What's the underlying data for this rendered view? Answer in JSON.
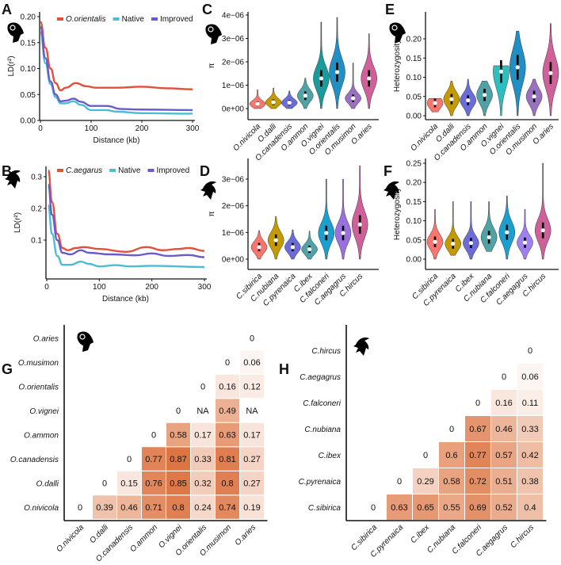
{
  "panel_labels": [
    "A",
    "B",
    "C",
    "D",
    "E",
    "F",
    "G",
    "H"
  ],
  "colors": {
    "wild": "#e0503a",
    "native": "#4bbcd4",
    "improved": "#6a5acd",
    "heat_low": "#ffffff",
    "heat_high": "#dc703c"
  },
  "icons": {
    "sheep": "ram-head-icon",
    "goat": "goat-head-icon"
  },
  "chart_data": [
    {
      "panel": "A",
      "type": "line",
      "xlabel": "Distance (kb)",
      "ylabel": "LD(r²)",
      "xlim": [
        0,
        300
      ],
      "ylim": [
        0,
        0.2
      ],
      "xticks": [
        0,
        100,
        200,
        300
      ],
      "xtick_labels": [
        "0",
        "100",
        "200",
        "300"
      ],
      "yticks": [
        0,
        0.05,
        0.1,
        0.15,
        0.2
      ],
      "ytick_labels": [
        "0.00",
        "0.05",
        "0.10",
        "0.15",
        "0.20"
      ],
      "legend": "top-right",
      "series": [
        {
          "name": "O.orientalis",
          "italic": true,
          "color": "#e0503a",
          "x": [
            0,
            10,
            20,
            30,
            40,
            50,
            70,
            90,
            110,
            150,
            200,
            250,
            300
          ],
          "y": [
            0.19,
            0.14,
            0.1,
            0.072,
            0.058,
            0.063,
            0.072,
            0.066,
            0.063,
            0.063,
            0.065,
            0.062,
            0.06
          ]
        },
        {
          "name": "Native",
          "color": "#4bbcd4",
          "x": [
            0,
            10,
            20,
            30,
            40,
            50,
            65,
            80,
            100,
            130,
            150,
            200,
            300
          ],
          "y": [
            0.17,
            0.11,
            0.07,
            0.045,
            0.033,
            0.033,
            0.037,
            0.03,
            0.02,
            0.02,
            0.017,
            0.014,
            0.013
          ]
        },
        {
          "name": "Improved",
          "color": "#6a5acd",
          "x": [
            0,
            10,
            20,
            30,
            40,
            50,
            65,
            80,
            100,
            130,
            160,
            200,
            300
          ],
          "y": [
            0.18,
            0.12,
            0.075,
            0.05,
            0.037,
            0.038,
            0.042,
            0.036,
            0.028,
            0.028,
            0.022,
            0.021,
            0.02
          ]
        }
      ]
    },
    {
      "panel": "B",
      "type": "line",
      "xlabel": "Distance (kb)",
      "ylabel": "LD(r²)",
      "xlim": [
        0,
        300
      ],
      "ylim": [
        0,
        0.33
      ],
      "xticks": [
        0,
        100,
        200,
        300
      ],
      "xtick_labels": [
        "0",
        "100",
        "200",
        "300"
      ],
      "yticks": [
        0.1,
        0.2,
        0.3
      ],
      "ytick_labels": [
        "0.1",
        "0.2",
        "0.3"
      ],
      "legend": "top-right",
      "series": [
        {
          "name": "C.aegarus",
          "italic": true,
          "color": "#e0503a",
          "x": [
            3,
            10,
            20,
            30,
            40,
            55,
            70,
            100,
            150,
            190,
            220,
            250,
            270,
            300
          ],
          "y": [
            0.32,
            0.22,
            0.12,
            0.075,
            0.068,
            0.075,
            0.078,
            0.072,
            0.063,
            0.078,
            0.068,
            0.072,
            0.075,
            0.066
          ]
        },
        {
          "name": "Native",
          "color": "#4bbcd4",
          "x": [
            3,
            10,
            20,
            30,
            45,
            65,
            80,
            100,
            130,
            160,
            200,
            300
          ],
          "y": [
            0.21,
            0.12,
            0.05,
            0.022,
            0.022,
            0.032,
            0.025,
            0.017,
            0.021,
            0.017,
            0.019,
            0.015
          ]
        },
        {
          "name": "Improved",
          "color": "#6a5acd",
          "x": [
            3,
            10,
            20,
            30,
            45,
            65,
            80,
            120,
            170,
            200,
            230,
            270,
            300
          ],
          "y": [
            0.275,
            0.18,
            0.1,
            0.06,
            0.055,
            0.068,
            0.06,
            0.055,
            0.052,
            0.058,
            0.05,
            0.053,
            0.046
          ]
        }
      ]
    },
    {
      "panel": "C",
      "type": "violin",
      "ylabel": "π",
      "ylim": [
        0,
        4e-06
      ],
      "yticks": [
        0,
        1e-06,
        2e-06,
        3e-06,
        4e-06
      ],
      "ytick_labels": [
        "0e+00",
        "1e−06",
        "2e−06",
        "3e−06",
        "4e−06"
      ],
      "categories": [
        "O.nivicola",
        "O.dalli",
        "O.canadensis",
        "O.ammon",
        "O.vignei",
        "O.orientalis",
        "O.musimon",
        "O.aries"
      ],
      "colors": [
        "#f8766d",
        "#c49a00",
        "#6c6cd9",
        "#4fa3a5",
        "#1a9b9b",
        "#1f8fc4",
        "#9a70c0",
        "#d0609a"
      ],
      "median": [
        2e-07,
        2.7e-07,
        2.5e-07,
        5.5e-07,
        1.29e-06,
        1.56e-06,
        4.4e-07,
        1.29e-06
      ],
      "min": [
        0,
        0,
        0,
        0,
        0,
        0,
        0,
        0
      ],
      "max": [
        8.1e-07,
        8.8e-07,
        7.5e-07,
        1.3e-06,
        3.7e-06,
        3.9e-06,
        1.95e-06,
        3.2e-06
      ]
    },
    {
      "panel": "D",
      "type": "violin",
      "ylabel": "π",
      "ylim": [
        0,
        3.6e-06
      ],
      "yticks": [
        0,
        1e-06,
        2e-06,
        3e-06
      ],
      "ytick_labels": [
        "0e+00",
        "1e−06",
        "2e−06",
        "3e−06"
      ],
      "categories": [
        "C.sibirica",
        "C.nubiana",
        "C.pyrenaica",
        "C.ibex",
        "C.falconeri",
        "C.aegagrus",
        "C.hircus"
      ],
      "colors": [
        "#f8766d",
        "#c49a00",
        "#6c6cd9",
        "#4fa3a5",
        "#1aa0d0",
        "#9a70e0",
        "#d0609a"
      ],
      "median": [
        4.5e-07,
        7.1e-07,
        4.5e-07,
        3.7e-07,
        9.8e-07,
        9.8e-07,
        1.3e-06
      ],
      "min": [
        0,
        0,
        0,
        0,
        0,
        0,
        0
      ],
      "max": [
        1.07e-06,
        1.6e-06,
        1.1e-06,
        1.05e-06,
        3e-06,
        3e-06,
        3.5e-06
      ]
    },
    {
      "panel": "E",
      "type": "violin",
      "ylabel": "Heterozygosity",
      "ylim": [
        0,
        0.25
      ],
      "yticks": [
        0,
        0.05,
        0.1,
        0.15,
        0.2
      ],
      "ytick_labels": [
        "0.00",
        "0.05",
        "0.10",
        "0.15",
        "0.20"
      ],
      "categories": [
        "O.nivicola",
        "O.dalli",
        "O.canadensis",
        "O.ammon",
        "O.vignei",
        "O.orientalis",
        "O.musimon",
        "O.aries"
      ],
      "colors": [
        "#f8766d",
        "#c49a00",
        "#6c6cd9",
        "#4fa3a5",
        "#2ac0c0",
        "#1f8fc4",
        "#9a70c0",
        "#d0609a"
      ],
      "median": [
        0.033,
        0.043,
        0.04,
        0.054,
        0.115,
        0.126,
        0.05,
        0.111
      ],
      "min": [
        0.01,
        0,
        0,
        0,
        0,
        0,
        0,
        0
      ],
      "max": [
        0.045,
        0.09,
        0.095,
        0.09,
        0.13,
        0.22,
        0.095,
        0.24
      ]
    },
    {
      "panel": "F",
      "type": "violin",
      "ylabel": "Heterozygosity",
      "ylim": [
        0,
        0.25
      ],
      "yticks": [
        0,
        0.05,
        0.1,
        0.15,
        0.2,
        0.25
      ],
      "ytick_labels": [
        "0.00",
        "0.05",
        "0.10",
        "0.15",
        "0.20",
        "0.25"
      ],
      "categories": [
        "C.sibirica",
        "C.pyrenaica",
        "C.ibex",
        "C.nubiana",
        "C.falconeri",
        "C.aegagrus",
        "C.hircus"
      ],
      "colors": [
        "#f8766d",
        "#c49a00",
        "#6c6cd9",
        "#4fa3a5",
        "#1aa0d0",
        "#a080f0",
        "#d0609a"
      ],
      "median": [
        0.045,
        0.04,
        0.042,
        0.057,
        0.07,
        0.043,
        0.075
      ],
      "min": [
        0,
        0.01,
        0,
        0.02,
        0,
        0,
        0
      ],
      "max": [
        0.13,
        0.15,
        0.15,
        0.15,
        0.165,
        0.13,
        0.25
      ]
    },
    {
      "panel": "G",
      "type": "heatmap",
      "species": [
        "O.nivicola",
        "O.dalli",
        "O.canadensis",
        "O.ammon",
        "O.vignei",
        "O.orientalis",
        "O.musimon",
        "O.aries"
      ],
      "rows_values": [
        [
          0,
          0.39,
          0.46,
          0.71,
          0.8,
          0.24,
          0.74,
          0.19
        ],
        [
          0,
          0.15,
          0.76,
          0.85,
          0.32,
          0.8,
          0.27
        ],
        [
          0,
          0.77,
          0.87,
          0.33,
          0.81,
          0.27
        ],
        [
          0,
          0.58,
          0.17,
          0.63,
          0.17
        ],
        [
          0,
          "NA",
          0.49,
          "NA"
        ],
        [
          0,
          0.16,
          0.12
        ],
        [
          0,
          0.06
        ],
        [
          0
        ]
      ]
    },
    {
      "panel": "H",
      "type": "heatmap",
      "species": [
        "C.sibirica",
        "C.pyrenaica",
        "C.ibex",
        "C.nubiana",
        "C.falconeri",
        "C.aegagrus",
        "C.hircus"
      ],
      "rows_values": [
        [
          0,
          0.63,
          0.65,
          0.55,
          0.69,
          0.52,
          0.4
        ],
        [
          0,
          0.29,
          0.58,
          0.72,
          0.51,
          0.38
        ],
        [
          0,
          0.6,
          0.77,
          0.57,
          0.42
        ],
        [
          0,
          0.67,
          0.46,
          0.33
        ],
        [
          0,
          0.16,
          0.11
        ],
        [
          0,
          0.06
        ],
        [
          0
        ]
      ]
    }
  ]
}
